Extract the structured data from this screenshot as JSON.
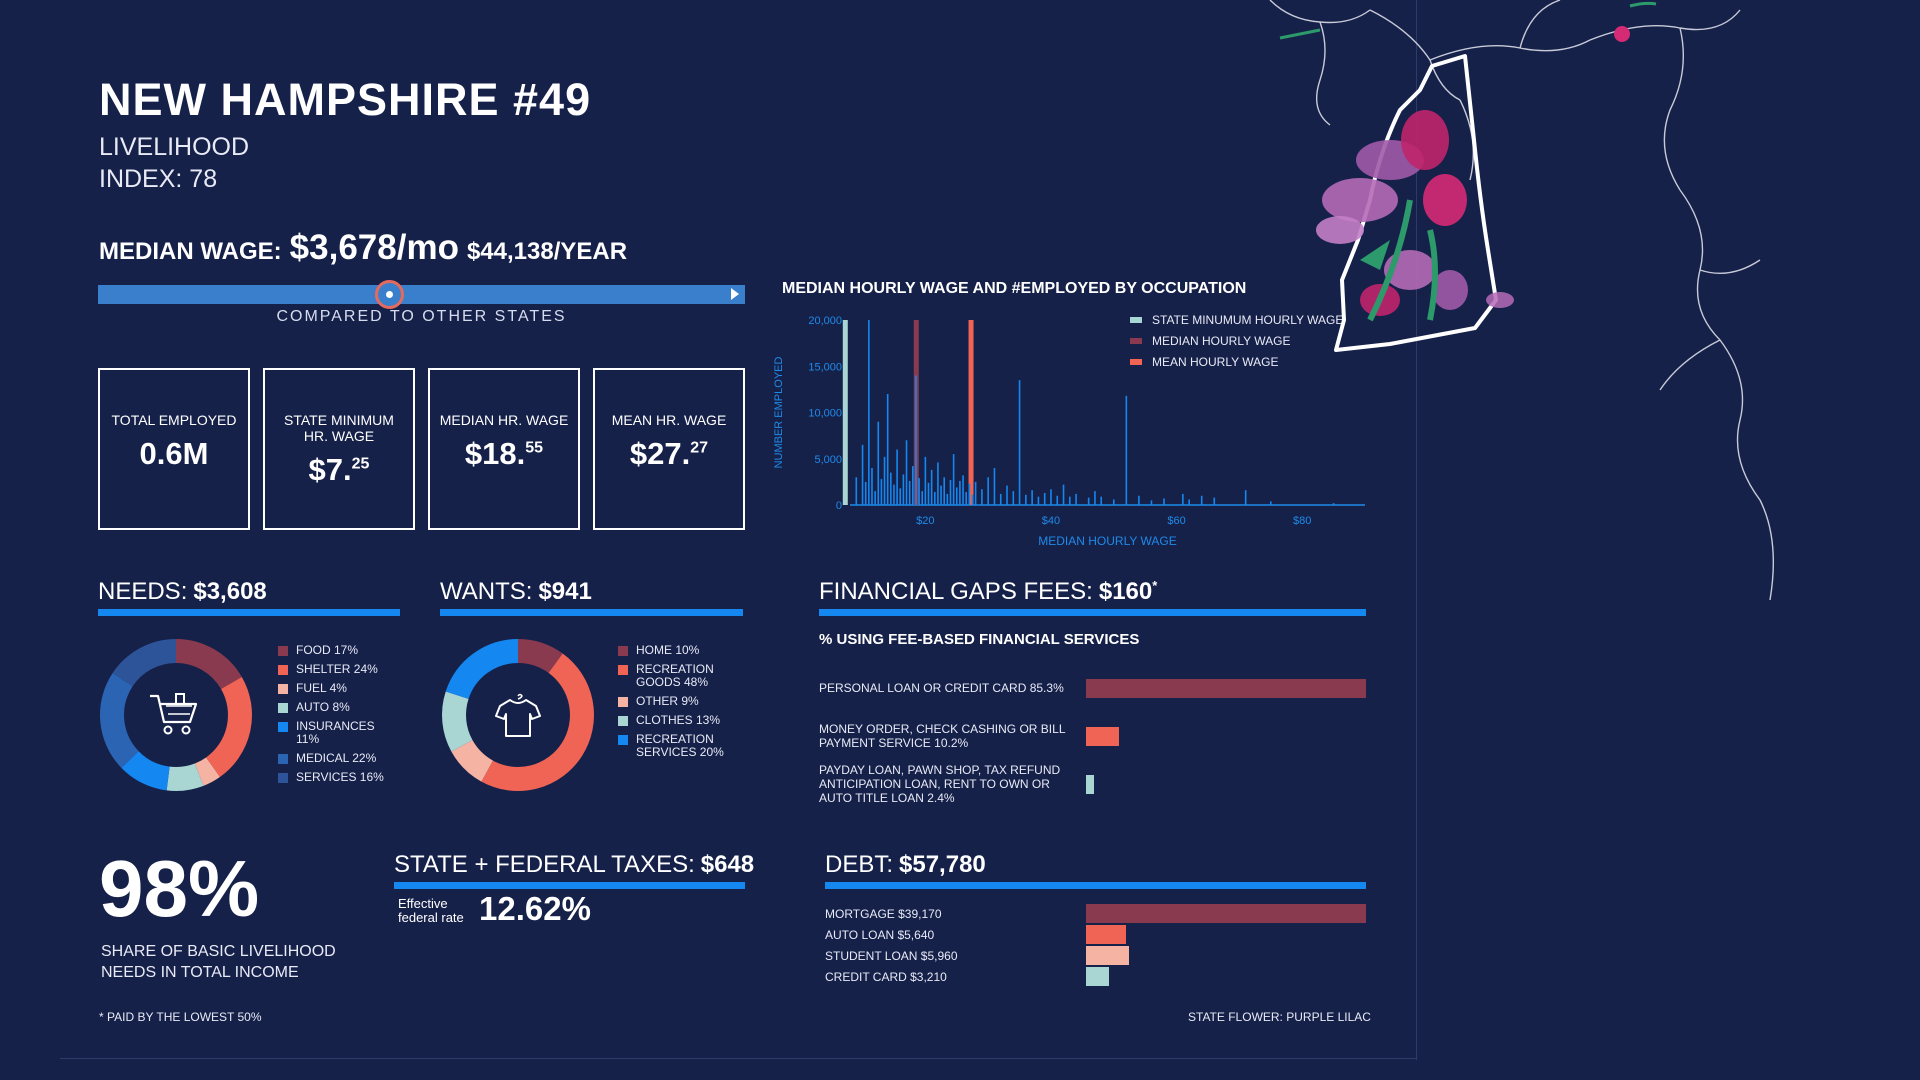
{
  "header": {
    "title": "NEW HAMPSHIRE #49",
    "subtitle_line1": "LIVELIHOOD",
    "subtitle_line2": "INDEX: 78"
  },
  "median_wage": {
    "label": "MEDIAN WAGE:",
    "monthly": "$3,678/mo",
    "yearly": "$44,138/YEAR",
    "compare_label": "COMPARED TO OTHER STATES",
    "compare_position_fraction": 0.45
  },
  "stats": [
    {
      "label": "TOTAL EMPLOYED",
      "value": "0.6M",
      "sup": ""
    },
    {
      "label": "STATE MINIMUM HR. WAGE",
      "value": "$7.",
      "sup": "25"
    },
    {
      "label": "MEDIAN HR. WAGE",
      "value": "$18.",
      "sup": "55"
    },
    {
      "label": "MEAN HR. WAGE",
      "value": "$27.",
      "sup": "27"
    }
  ],
  "needs": {
    "label": "NEEDS:",
    "amount": "$3,608",
    "items": [
      {
        "label": "FOOD 17%",
        "value": 17,
        "color": "#8a3a4e"
      },
      {
        "label": "SHELTER 24%",
        "value": 24,
        "color": "#ef6455"
      },
      {
        "label": "FUEL 4%",
        "value": 4,
        "color": "#f5b3a3"
      },
      {
        "label": "AUTO 8%",
        "value": 8,
        "color": "#a9d5d3"
      },
      {
        "label": "INSURANCES 11%",
        "value": 11,
        "color": "#1488f0"
      },
      {
        "label": "MEDICAL 22%",
        "value": 22,
        "color": "#2c64b4"
      },
      {
        "label": "SERVICES 16%",
        "value": 16,
        "color": "#2d5498"
      }
    ]
  },
  "wants": {
    "label": "WANTS:",
    "amount": "$941",
    "items": [
      {
        "label": "HOME 10%",
        "value": 10,
        "color": "#8a3a4e"
      },
      {
        "label": "RECREATION GOODS 48%",
        "value": 48,
        "color": "#ef6455"
      },
      {
        "label": "OTHER 9%",
        "value": 9,
        "color": "#f5b3a3"
      },
      {
        "label": "CLOTHES 13%",
        "value": 13,
        "color": "#a9d5d3"
      },
      {
        "label": "RECREATION SERVICES 20%",
        "value": 20,
        "color": "#1488f0"
      }
    ]
  },
  "fin_gaps": {
    "label": "FINANCIAL GAPS FEES:",
    "amount": "$160",
    "star": "*",
    "subtitle": "% USING FEE-BASED FINANCIAL SERVICES",
    "items": [
      {
        "label": "PERSONAL LOAN OR CREDIT CARD 85.3%",
        "value": 85.3,
        "color": "#8a3a4e"
      },
      {
        "label": "MONEY ORDER, CHECK CASHING OR BILL PAYMENT SERVICE 10.2%",
        "value": 10.2,
        "color": "#ef6455"
      },
      {
        "label": "PAYDAY LOAN, PAWN SHOP, TAX REFUND ANTICIPATION LOAN, RENT TO OWN OR AUTO TITLE LOAN 2.4%",
        "value": 2.4,
        "color": "#a9d5d3"
      }
    ]
  },
  "share": {
    "value": "98%",
    "line1": "SHARE OF BASIC LIVELIHOOD",
    "line2": "NEEDS IN TOTAL INCOME"
  },
  "taxes": {
    "label": "STATE + FEDERAL TAXES:",
    "amount": "$648",
    "rate_label_1": "Effective",
    "rate_label_2": "federal rate",
    "rate": "12.62%"
  },
  "debt": {
    "label": "DEBT:",
    "amount": "$57,780",
    "items": [
      {
        "label": "MORTGAGE $39,170",
        "value": 39170,
        "color": "#8a3a4e"
      },
      {
        "label": "AUTO LOAN $5,640",
        "value": 5640,
        "color": "#ef6455"
      },
      {
        "label": "STUDENT LOAN $5,960",
        "value": 5960,
        "color": "#f5b3a3"
      },
      {
        "label": "CREDIT CARD $3,210",
        "value": 3210,
        "color": "#a9d5d3"
      }
    ]
  },
  "footer": {
    "note": "* PAID BY THE LOWEST 50%",
    "flower": "STATE FLOWER: PURPLE LILAC"
  },
  "chart_data": {
    "type": "bar",
    "title": "MEDIAN HOURLY WAGE AND #EMPLOYED BY OCCUPATION",
    "xlabel": "MEDIAN HOURLY WAGE",
    "ylabel": "NUMBER EMPLOYED",
    "xlim": [
      8,
      90
    ],
    "ylim": [
      0,
      20000
    ],
    "xticks": [
      "$20",
      "$40",
      "$60",
      "$80"
    ],
    "xtick_values": [
      20,
      40,
      60,
      80
    ],
    "yticks": [
      "0",
      "5,000",
      "10,000",
      "15,000",
      "20,000"
    ],
    "ytick_values": [
      0,
      5000,
      10000,
      15000,
      20000
    ],
    "legend": [
      {
        "name": "STATE MINUMUM HOURLY WAGE",
        "color": "#a9d5d3"
      },
      {
        "name": "MEDIAN HOURLY WAGE",
        "color": "#8a3a4e"
      },
      {
        "name": "MEAN HOURLY WAGE",
        "color": "#ef6455"
      }
    ],
    "reference_lines": [
      {
        "name": "STATE MINUMUM HOURLY WAGE",
        "x": 7.25,
        "color": "#a9d5d3"
      },
      {
        "name": "MEDIAN HOURLY WAGE",
        "x": 18.55,
        "color": "#8a3a4e"
      },
      {
        "name": "MEAN HOURLY WAGE",
        "x": 27.27,
        "color": "#ef6455"
      }
    ],
    "points": [
      [
        9,
        3000
      ],
      [
        10,
        6500
      ],
      [
        10.5,
        2500
      ],
      [
        11,
        20000
      ],
      [
        11.5,
        4000
      ],
      [
        12,
        1500
      ],
      [
        12.5,
        9000
      ],
      [
        13,
        2800
      ],
      [
        13.5,
        5200
      ],
      [
        14,
        12000
      ],
      [
        14.5,
        3500
      ],
      [
        15,
        2200
      ],
      [
        15.5,
        6000
      ],
      [
        16,
        1800
      ],
      [
        16.5,
        3300
      ],
      [
        17,
        7000
      ],
      [
        17.5,
        2600
      ],
      [
        18,
        4200
      ],
      [
        18.5,
        14000
      ],
      [
        19,
        2900
      ],
      [
        19.5,
        1500
      ],
      [
        20,
        5200
      ],
      [
        20.5,
        2400
      ],
      [
        21,
        3800
      ],
      [
        21.5,
        1400
      ],
      [
        22,
        4600
      ],
      [
        22.5,
        2100
      ],
      [
        23,
        3000
      ],
      [
        23.5,
        1200
      ],
      [
        24,
        2700
      ],
      [
        24.5,
        5500
      ],
      [
        25,
        1900
      ],
      [
        25.5,
        2600
      ],
      [
        26,
        3200
      ],
      [
        26.5,
        1400
      ],
      [
        27,
        2300
      ],
      [
        27.5,
        1100
      ],
      [
        28,
        2500
      ],
      [
        29,
        1700
      ],
      [
        30,
        3000
      ],
      [
        31,
        4000
      ],
      [
        32,
        1200
      ],
      [
        33,
        2100
      ],
      [
        34,
        1500
      ],
      [
        35,
        13500
      ],
      [
        36,
        1100
      ],
      [
        37,
        1600
      ],
      [
        38,
        900
      ],
      [
        39,
        1300
      ],
      [
        40,
        1700
      ],
      [
        41,
        1000
      ],
      [
        42,
        2200
      ],
      [
        43,
        900
      ],
      [
        44,
        1200
      ],
      [
        46,
        800
      ],
      [
        47,
        1500
      ],
      [
        48,
        900
      ],
      [
        50,
        600
      ],
      [
        52,
        11800
      ],
      [
        54,
        1000
      ],
      [
        56,
        500
      ],
      [
        58,
        700
      ],
      [
        61,
        1200
      ],
      [
        62,
        600
      ],
      [
        64,
        1000
      ],
      [
        66,
        800
      ],
      [
        71,
        1600
      ],
      [
        75,
        400
      ],
      [
        85,
        200
      ]
    ]
  }
}
